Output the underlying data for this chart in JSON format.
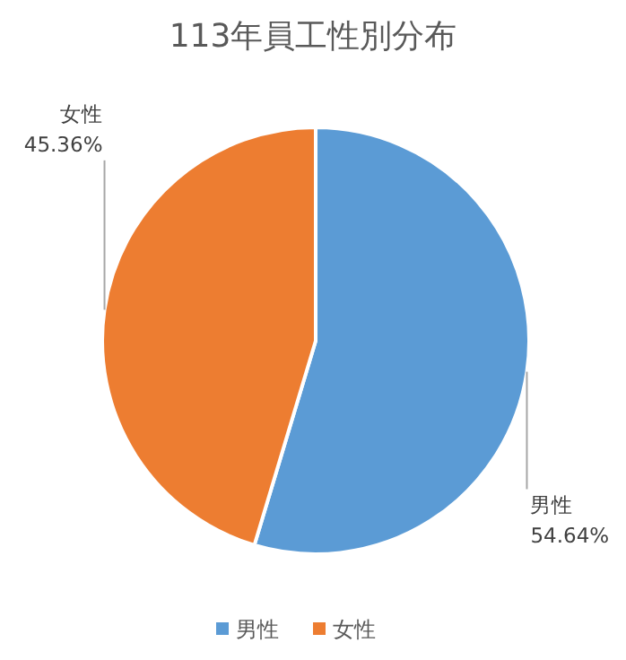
{
  "chart_data": {
    "type": "pie",
    "title": "113年員工性別分布",
    "categories": [
      "男性",
      "女性"
    ],
    "values": [
      54.64,
      45.36
    ],
    "value_labels": [
      "54.64%",
      "45.36%"
    ],
    "colors": [
      "#5b9bd5",
      "#ed7d31"
    ],
    "legend": "bottom"
  }
}
